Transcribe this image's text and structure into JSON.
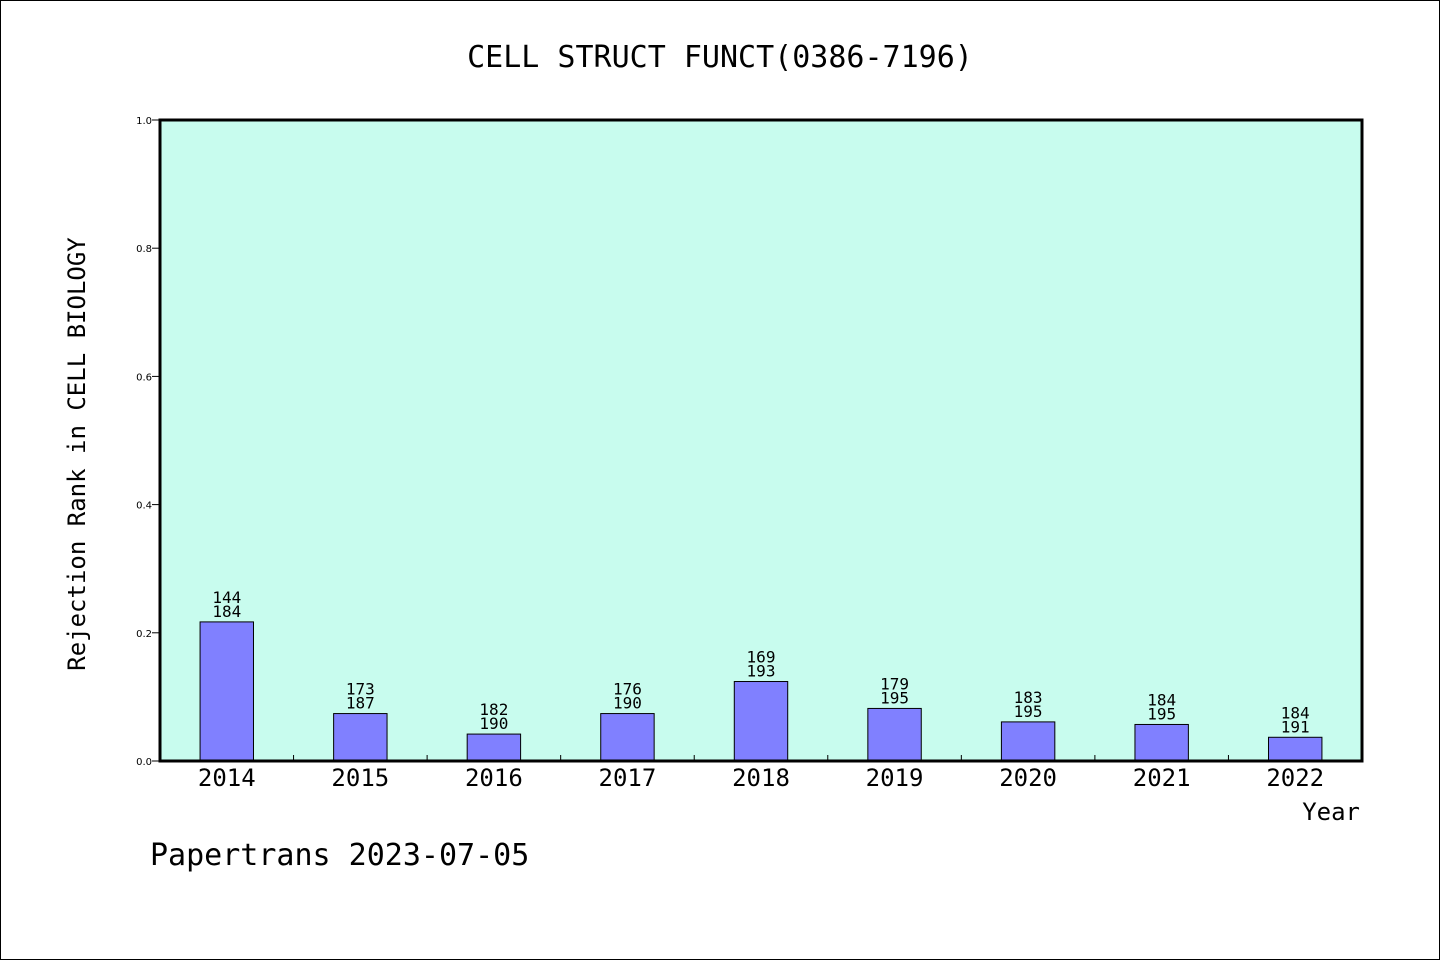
{
  "chart_data": {
    "type": "bar",
    "title": "CELL STRUCT FUNCT(0386-7196)",
    "xlabel": "Year",
    "ylabel": "Rejection Rank in CELL BIOLOGY",
    "ylim": [
      0,
      1.0
    ],
    "yticks": [
      "0.0",
      "0.2",
      "0.4",
      "0.6",
      "0.8",
      "1.0"
    ],
    "grid": false,
    "plot_background": "#c8fcee",
    "bar_color": "#8080ff",
    "categories": [
      "2014",
      "2015",
      "2016",
      "2017",
      "2018",
      "2019",
      "2020",
      "2021",
      "2022"
    ],
    "values": [
      0.217,
      0.074,
      0.042,
      0.074,
      0.124,
      0.082,
      0.061,
      0.057,
      0.037
    ],
    "labels_top": [
      "144",
      "173",
      "182",
      "176",
      "169",
      "179",
      "183",
      "184",
      "184"
    ],
    "labels_bottom": [
      "184",
      "187",
      "190",
      "190",
      "193",
      "195",
      "195",
      "195",
      "191"
    ]
  },
  "footer": "Papertrans 2023-07-05"
}
